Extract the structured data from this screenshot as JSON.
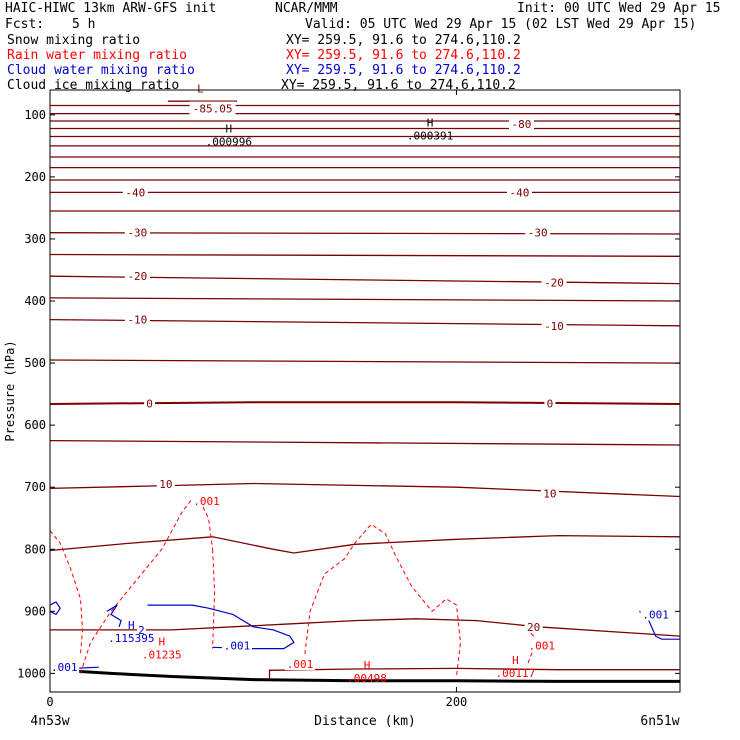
{
  "header": {
    "title": "HAIC-HIWC 13km ARW-GFS init",
    "org": "NCAR/MMM",
    "init": "Init: 00 UTC Wed 29 Apr 15",
    "fcst_label": "Fcst:",
    "fcst_value": "5 h",
    "valid": "Valid: 05 UTC Wed 29 Apr 15 (02 LST Wed 29 Apr 15)"
  },
  "fields": [
    {
      "name": "Snow mixing ratio",
      "xy": "XY= 259.5, 91.6 to 274.6,110.2",
      "color": "#000000"
    },
    {
      "name": "Rain water mixing ratio",
      "xy": "XY= 259.5, 91.6 to 274.6,110.2",
      "color": "#ff0000"
    },
    {
      "name": "Cloud water mixing ratio",
      "xy": "XY= 259.5, 91.6 to 274.6,110.2",
      "color": "#0000cc"
    },
    {
      "name": "Cloud ice mixing ratio",
      "xy": "XY= 259.5, 91.6 to 274.6,110.2",
      "color": "#000000"
    }
  ],
  "chart_data": {
    "type": "cross-section contour",
    "xlabel": "Distance (km)",
    "ylabel": "Pressure (hPa)",
    "xlim": [
      0,
      310
    ],
    "ylim": [
      1030,
      60
    ],
    "xticks": [
      0,
      200
    ],
    "yticks": [
      100,
      200,
      300,
      400,
      500,
      600,
      700,
      800,
      900,
      1000
    ],
    "endpoint_labels": {
      "left": "4n53w",
      "right": "6n51w"
    },
    "temperature_labels": [
      {
        "text": "-85.05",
        "x": 80,
        "p": 90
      },
      {
        "text": "-80",
        "x": 232,
        "p": 115
      },
      {
        "text": "-40",
        "x": 42,
        "p": 225
      },
      {
        "text": "-40",
        "x": 231,
        "p": 225
      },
      {
        "text": "-30",
        "x": 43,
        "p": 290
      },
      {
        "text": "-30",
        "x": 240,
        "p": 290
      },
      {
        "text": "-20",
        "x": 43,
        "p": 360
      },
      {
        "text": "-20",
        "x": 248,
        "p": 370
      },
      {
        "text": "-10",
        "x": 43,
        "p": 430
      },
      {
        "text": "-10",
        "x": 248,
        "p": 440
      },
      {
        "text": "0",
        "x": 49,
        "p": 565
      },
      {
        "text": "0",
        "x": 246,
        "p": 565
      },
      {
        "text": "10",
        "x": 57,
        "p": 695
      },
      {
        "text": "10",
        "x": 246,
        "p": 710
      },
      {
        "text": "20",
        "x": 238,
        "p": 925
      }
    ],
    "temperature_isotherms": [
      {
        "value": "-85.05",
        "x": [
          58,
          92
        ],
        "p": [
          78,
          78
        ]
      },
      {
        "value": "-80",
        "x": [
          0,
          310
        ],
        "p": [
          85,
          85
        ]
      },
      {
        "value": "-70",
        "x": [
          0,
          310
        ],
        "p": [
          98,
          98
        ]
      },
      {
        "value": "-65",
        "x": [
          0,
          310
        ],
        "p": [
          110,
          110
        ]
      },
      {
        "value": "-60",
        "x": [
          0,
          310
        ],
        "p": [
          122,
          122
        ]
      },
      {
        "value": "-55",
        "x": [
          0,
          310
        ],
        "p": [
          135,
          135
        ]
      },
      {
        "value": "-50",
        "x": [
          0,
          310
        ],
        "p": [
          150,
          150
        ]
      },
      {
        "value": "-48",
        "x": [
          0,
          310
        ],
        "p": [
          168,
          168
        ]
      },
      {
        "value": "-46",
        "x": [
          0,
          310
        ],
        "p": [
          185,
          185
        ]
      },
      {
        "value": "-44",
        "x": [
          0,
          310
        ],
        "p": [
          205,
          205
        ]
      },
      {
        "value": "-40",
        "x": [
          0,
          310
        ],
        "p": [
          225,
          225
        ]
      },
      {
        "value": "-35",
        "x": [
          0,
          310
        ],
        "p": [
          255,
          255
        ]
      },
      {
        "value": "-30",
        "x": [
          0,
          310
        ],
        "p": [
          290,
          292
        ]
      },
      {
        "value": "-25",
        "x": [
          0,
          310
        ],
        "p": [
          325,
          328
        ]
      },
      {
        "value": "-20",
        "x": [
          0,
          310
        ],
        "p": [
          360,
          372
        ]
      },
      {
        "value": "-15",
        "x": [
          0,
          310
        ],
        "p": [
          395,
          400
        ]
      },
      {
        "value": "-10",
        "x": [
          0,
          310
        ],
        "p": [
          430,
          440
        ]
      },
      {
        "value": "-5",
        "x": [
          0,
          310
        ],
        "p": [
          495,
          500
        ]
      },
      {
        "value": "0",
        "x": [
          0,
          100,
          200,
          310
        ],
        "p": [
          566,
          563,
          563,
          566
        ]
      },
      {
        "value": "5",
        "x": [
          0,
          310
        ],
        "p": [
          625,
          632
        ]
      },
      {
        "value": "10",
        "x": [
          0,
          50,
          100,
          200,
          310
        ],
        "p": [
          702,
          698,
          694,
          700,
          715
        ]
      },
      {
        "value": "15",
        "x": [
          0,
          40,
          80,
          110,
          120,
          150,
          200,
          250,
          310
        ],
        "p": [
          802,
          790,
          780,
          800,
          806,
          792,
          784,
          778,
          780
        ]
      },
      {
        "value": "20",
        "x": [
          0,
          60,
          120,
          150,
          180,
          210,
          240,
          310
        ],
        "p": [
          930,
          930,
          920,
          915,
          912,
          915,
          925,
          940
        ]
      },
      {
        "value": "25",
        "x": [
          108,
          108,
          150,
          200,
          250,
          310
        ],
        "p": [
          1008,
          995,
          993,
          992,
          994,
          994
        ]
      }
    ],
    "surface": {
      "x": [
        0,
        10,
        30,
        60,
        100,
        150,
        200,
        250,
        310
      ],
      "p": [
        995,
        996,
        1000,
        1005,
        1010,
        1012,
        1012,
        1013,
        1013
      ]
    },
    "highs_lows": [
      {
        "type": "L",
        "text": "",
        "x": 74,
        "p": 75,
        "color": "#990000"
      },
      {
        "type": "H",
        "text": ".000996",
        "x": 88,
        "p": 140,
        "color": "#000000"
      },
      {
        "type": "H",
        "text": ".000391",
        "x": 187,
        "p": 130,
        "color": "#000000"
      },
      {
        "type": "H",
        "text": ".115395",
        "x": 40,
        "p": 940,
        "color": "#0000cc"
      },
      {
        "type": "H",
        "text": ".01235",
        "x": 55,
        "p": 966,
        "color": "#ff0000"
      },
      {
        "type": "H",
        "text": ".00498",
        "x": 156,
        "p": 1004,
        "color": "#ff0000"
      },
      {
        "type": "H",
        "text": ".00117",
        "x": 229,
        "p": 996,
        "color": "#ff0000"
      }
    ],
    "contour_labels": [
      {
        "text": ".001",
        "x": 77,
        "p": 722,
        "color": "#ff0000"
      },
      {
        "text": ".001",
        "x": 123,
        "p": 985,
        "color": "#ff0000"
      },
      {
        "text": ".001",
        "x": 92,
        "p": 955,
        "color": "#0000cc"
      },
      {
        "text": ".001",
        "x": 298,
        "p": 905,
        "color": "#0000cc"
      },
      {
        "text": ".001",
        "x": 7,
        "p": 990,
        "color": "#0000cc"
      },
      {
        "text": ".001",
        "x": 242,
        "p": 955,
        "color": "#ff0000"
      },
      {
        "text": "2",
        "x": 45,
        "p": 930,
        "color": "#0000cc"
      }
    ],
    "rain_contours": [
      {
        "x": [
          0,
          5,
          10,
          15,
          16,
          15
        ],
        "p": [
          770,
          790,
          830,
          880,
          930,
          970
        ]
      },
      {
        "x": [
          15,
          20,
          30,
          40,
          55,
          65,
          72,
          78,
          80
        ],
        "p": [
          1000,
          950,
          900,
          860,
          800,
          740,
          710,
          750,
          800
        ]
      },
      {
        "x": [
          80,
          81,
          80
        ],
        "p": [
          800,
          870,
          960
        ]
      },
      {
        "x": [
          125,
          128,
          135,
          145,
          150,
          158,
          165,
          170,
          178,
          188,
          195,
          200,
          202,
          200
        ],
        "p": [
          980,
          900,
          840,
          815,
          790,
          760,
          775,
          810,
          860,
          900,
          880,
          890,
          950,
          1005
        ]
      },
      {
        "x": [
          235,
          235,
          238,
          238,
          235
        ],
        "p": [
          915,
          930,
          940,
          960,
          985
        ]
      }
    ],
    "cloudwater_contours": [
      {
        "x": [
          0,
          3,
          5,
          3,
          0
        ],
        "p": [
          890,
          885,
          895,
          905,
          900
        ]
      },
      {
        "x": [
          28,
          33,
          30,
          35,
          34
        ],
        "p": [
          900,
          890,
          905,
          915,
          925
        ]
      },
      {
        "x": [
          48,
          70,
          78,
          90,
          100,
          110,
          118,
          120,
          115,
          100,
          80
        ],
        "p": [
          890,
          890,
          895,
          905,
          925,
          930,
          940,
          950,
          960,
          960,
          958
        ]
      },
      {
        "x": [
          0,
          5,
          12,
          24
        ],
        "p": [
          990,
          992,
          992,
          990
        ]
      },
      {
        "x": [
          290,
          294,
          298,
          301,
          310
        ],
        "p": [
          900,
          910,
          940,
          945,
          945
        ]
      }
    ],
    "isotherm_color": "#7b0000",
    "rain_color": "#ff0000",
    "cloud_color": "#0000cc",
    "ice_color": "#000000"
  }
}
